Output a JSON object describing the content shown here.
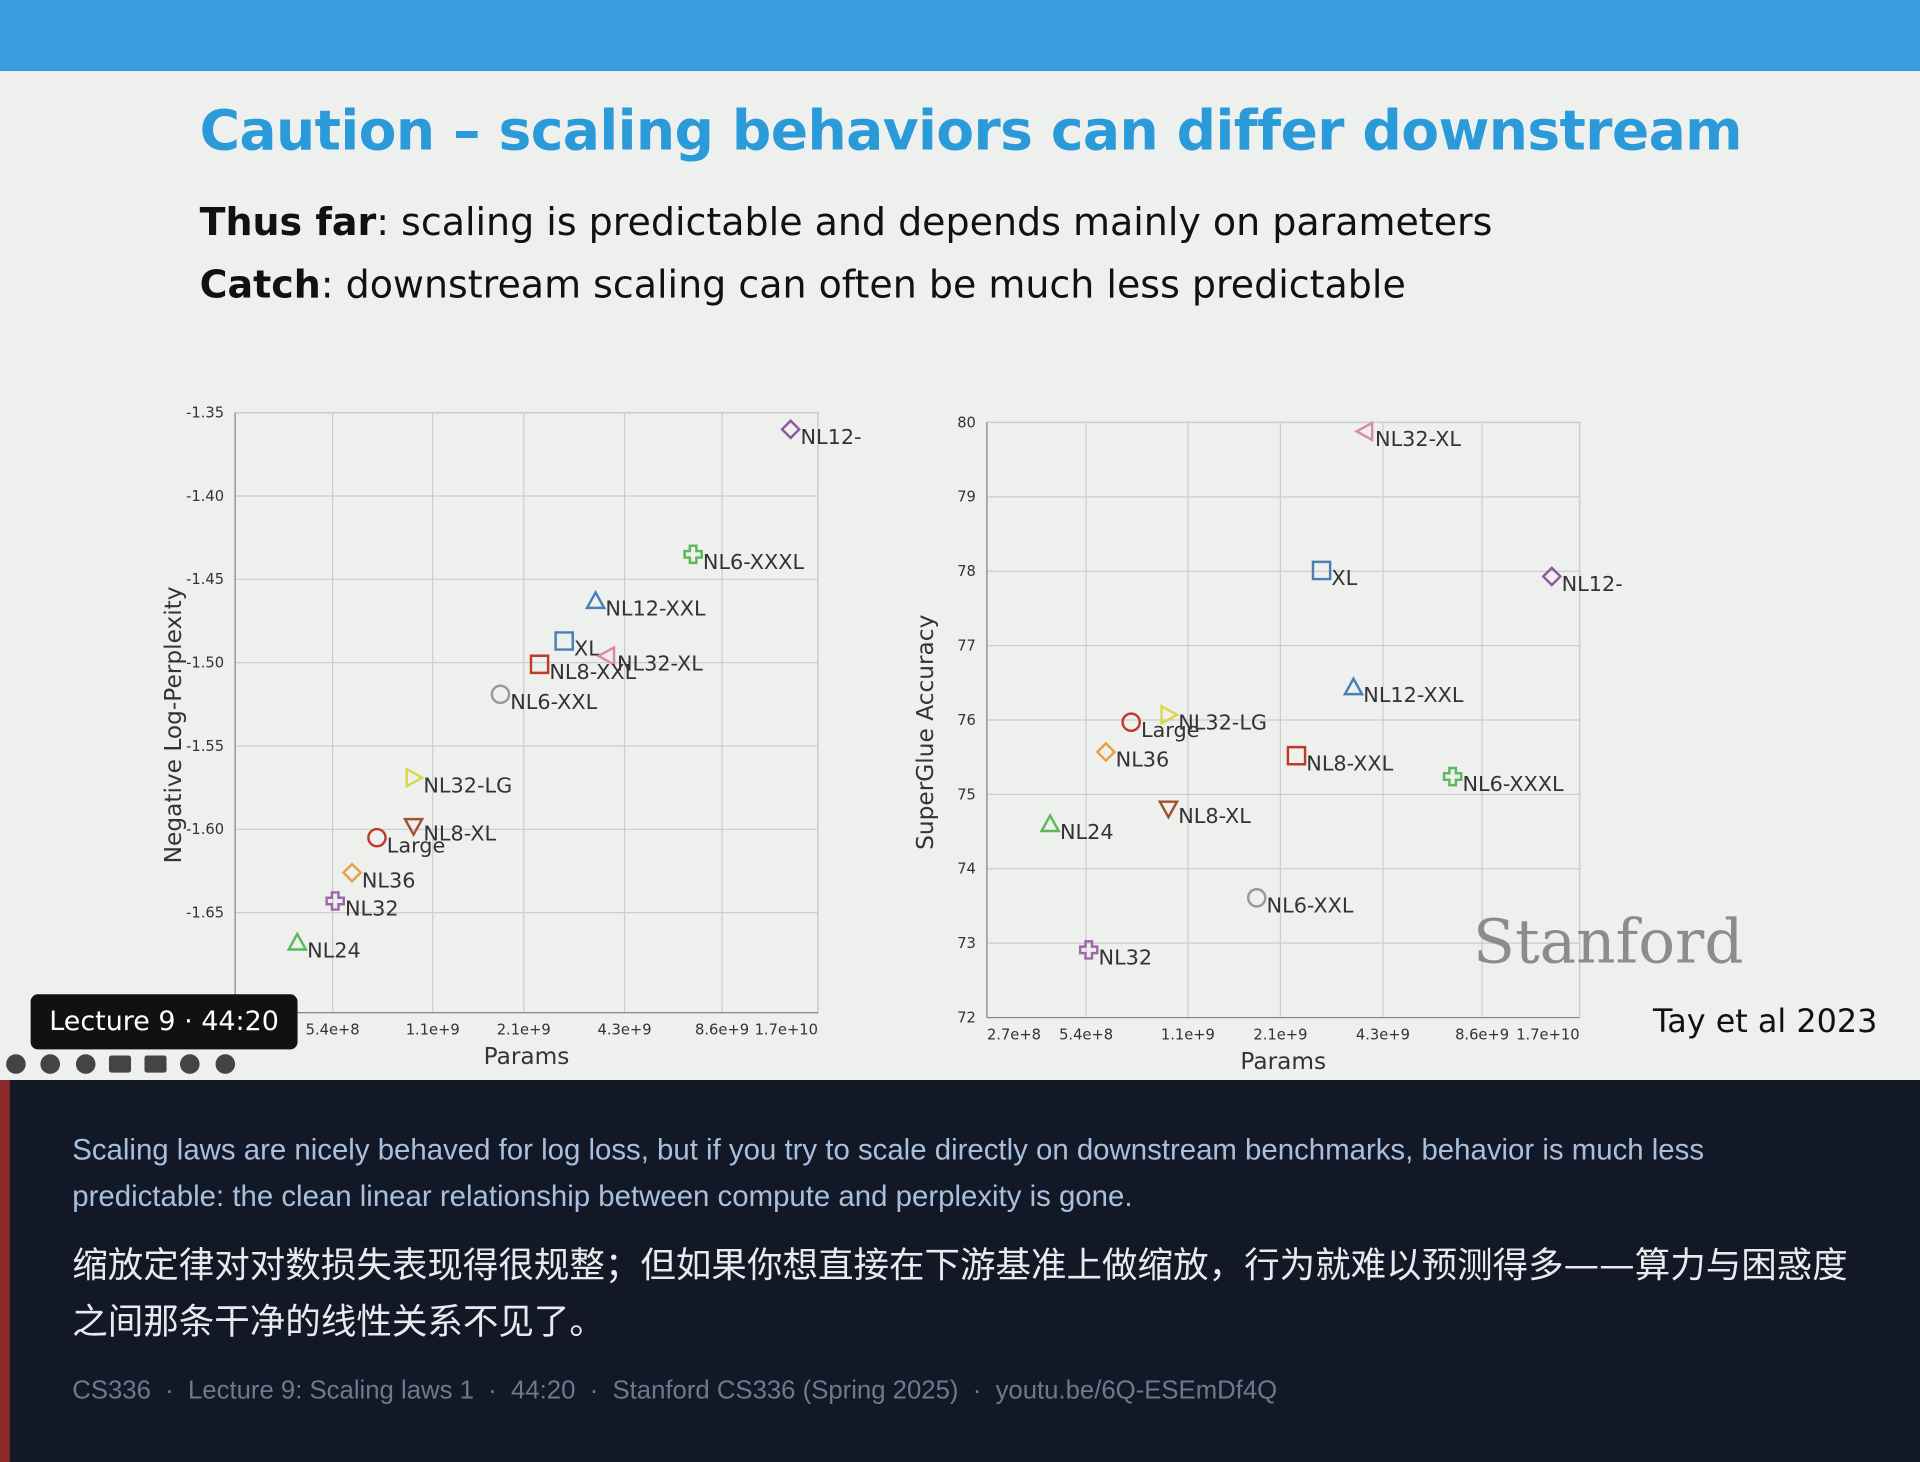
{
  "slide": {
    "title": "Caution – scaling behaviors can differ downstream",
    "lines": [
      {
        "label": "Thus far",
        "text": ": scaling is predictable and depends mainly on parameters"
      },
      {
        "label": "Catch",
        "text": ": downstream scaling can often be much less predictable"
      }
    ],
    "logo": "Stanford",
    "credit": "Tay et al 2023"
  },
  "chart_data": [
    {
      "type": "scatter",
      "x_label": "Params",
      "y_label": "Negative Log-Perplexity",
      "x_scale": "log",
      "grid": true,
      "xlim": [
        270000000,
        17000000000
      ],
      "ylim": [
        -1.71,
        -1.35
      ],
      "xticks": [
        {
          "value": 540000000,
          "label": "5.4e+8"
        },
        {
          "value": 1100000000,
          "label": "1.1e+9"
        },
        {
          "value": 2100000000,
          "label": "2.1e+9"
        },
        {
          "value": 4300000000,
          "label": "4.3e+9"
        },
        {
          "value": 8600000000,
          "label": "8.6e+9"
        },
        {
          "value": 17000000000,
          "label": "1.7e+10"
        }
      ],
      "yticks": [
        -1.35,
        {
          "value": -1.4,
          "label": "-1.40"
        },
        -1.45,
        {
          "value": -1.5,
          "label": "-1.50"
        },
        -1.55,
        {
          "value": -1.6,
          "label": "-1.60"
        },
        -1.65
      ],
      "series": [
        {
          "name": "NL12-",
          "color": "#8a5a9a",
          "marker": "diamond",
          "x": [
            14000000000
          ],
          "values": [
            -1.36
          ]
        },
        {
          "name": "NL6-XXXL",
          "color": "#5cb85c",
          "marker": "plus",
          "x": [
            7000000000
          ],
          "values": [
            -1.435
          ]
        },
        {
          "name": "NL12-XXL",
          "color": "#4a7fb5",
          "marker": "triangle-up",
          "x": [
            3500000000
          ],
          "values": [
            -1.463
          ]
        },
        {
          "name": "XL",
          "color": "#4a7fb5",
          "marker": "square",
          "x": [
            2800000000
          ],
          "values": [
            -1.487
          ]
        },
        {
          "name": "NL32-XL",
          "color": "#d98aa8",
          "marker": "triangle-left",
          "x": [
            3800000000
          ],
          "values": [
            -1.496
          ]
        },
        {
          "name": "NL8-XXL",
          "color": "#c0392b",
          "marker": "square",
          "x": [
            2350000000
          ],
          "values": [
            -1.501
          ]
        },
        {
          "name": "NL6-XXL",
          "color": "#999999",
          "marker": "circle",
          "x": [
            1780000000
          ],
          "values": [
            -1.519
          ]
        },
        {
          "name": "NL32-LG",
          "color": "#d8d84a",
          "marker": "triangle-right",
          "x": [
            960000000
          ],
          "values": [
            -1.569
          ]
        },
        {
          "name": "NL8-XL",
          "color": "#a0522d",
          "marker": "triangle-down",
          "x": [
            960000000
          ],
          "values": [
            -1.598
          ]
        },
        {
          "name": "Large",
          "color": "#c0392b",
          "marker": "circle",
          "x": [
            740000000
          ],
          "values": [
            -1.605
          ]
        },
        {
          "name": "NL36",
          "color": "#e8a040",
          "marker": "diamond",
          "x": [
            620000000
          ],
          "values": [
            -1.626
          ]
        },
        {
          "name": "NL32",
          "color": "#9b6aa8",
          "marker": "plus",
          "x": [
            550000000
          ],
          "values": [
            -1.643
          ]
        },
        {
          "name": "NL24",
          "color": "#5cb85c",
          "marker": "triangle-up",
          "x": [
            420000000
          ],
          "values": [
            -1.668
          ]
        }
      ]
    },
    {
      "type": "scatter",
      "x_label": "Params",
      "y_label": "SuperGlue Accuracy",
      "x_scale": "log",
      "grid": true,
      "xlim": [
        270000000,
        17000000000
      ],
      "ylim": [
        72,
        80
      ],
      "xticks": [
        {
          "value": 270000000,
          "label": "2.7e+8"
        },
        {
          "value": 540000000,
          "label": "5.4e+8"
        },
        {
          "value": 1100000000,
          "label": "1.1e+9"
        },
        {
          "value": 2100000000,
          "label": "2.1e+9"
        },
        {
          "value": 4300000000,
          "label": "4.3e+9"
        },
        {
          "value": 8600000000,
          "label": "8.6e+9"
        },
        {
          "value": 17000000000,
          "label": "1.7e+10"
        }
      ],
      "yticks": [
        72,
        73,
        74,
        75,
        76,
        77,
        78,
        79,
        80
      ],
      "series": [
        {
          "name": "NL32-XL",
          "color": "#d98aa8",
          "marker": "triangle-left",
          "x": [
            3800000000
          ],
          "values": [
            79.88
          ]
        },
        {
          "name": "XL",
          "color": "#4a7fb5",
          "marker": "square",
          "x": [
            2800000000
          ],
          "values": [
            78.01
          ]
        },
        {
          "name": "NL12-",
          "color": "#8a5a9a",
          "marker": "diamond",
          "x": [
            14000000000
          ],
          "values": [
            77.93
          ]
        },
        {
          "name": "NL12-XXL",
          "color": "#4a7fb5",
          "marker": "triangle-up",
          "x": [
            3500000000
          ],
          "values": [
            76.44
          ]
        },
        {
          "name": "NL32-LG",
          "color": "#d8d84a",
          "marker": "triangle-right",
          "x": [
            960000000
          ],
          "values": [
            76.07
          ]
        },
        {
          "name": "Large",
          "color": "#c0392b",
          "marker": "circle",
          "x": [
            740000000
          ],
          "values": [
            75.97
          ]
        },
        {
          "name": "NL36",
          "color": "#e8a040",
          "marker": "diamond",
          "x": [
            620000000
          ],
          "values": [
            75.57
          ]
        },
        {
          "name": "NL8-XXL",
          "color": "#c0392b",
          "marker": "square",
          "x": [
            2350000000
          ],
          "values": [
            75.52
          ]
        },
        {
          "name": "NL6-XXXL",
          "color": "#5cb85c",
          "marker": "plus",
          "x": [
            7000000000
          ],
          "values": [
            75.24
          ]
        },
        {
          "name": "NL8-XL",
          "color": "#a0522d",
          "marker": "triangle-down",
          "x": [
            960000000
          ],
          "values": [
            74.81
          ]
        },
        {
          "name": "NL24",
          "color": "#5cb85c",
          "marker": "triangle-up",
          "x": [
            420000000
          ],
          "values": [
            74.6
          ]
        },
        {
          "name": "NL6-XXL",
          "color": "#999999",
          "marker": "circle",
          "x": [
            1780000000
          ],
          "values": [
            73.61
          ]
        },
        {
          "name": "NL32",
          "color": "#9b6aa8",
          "marker": "plus",
          "x": [
            550000000
          ],
          "values": [
            72.91
          ]
        }
      ]
    }
  ],
  "player": {
    "badge": "Lecture 9 · 44:20"
  },
  "caption": {
    "english": "Scaling laws are nicely behaved for log loss, but if you try to scale directly on downstream benchmarks, behavior is much less predictable: the clean linear relationship between compute and perplexity is gone.",
    "chinese": "缩放定律对对数损失表现得很规整；但如果你想直接在下游基准上做缩放，行为就难以预测得多——算力与困惑度之间那条干净的线性关系不见了。",
    "meta": "CS336  ·  Lecture 9: Scaling laws 1  ·  44:20  ·  Stanford CS336 (Spring 2025)  ·  youtu.be/6Q-ESEmDf4Q"
  }
}
